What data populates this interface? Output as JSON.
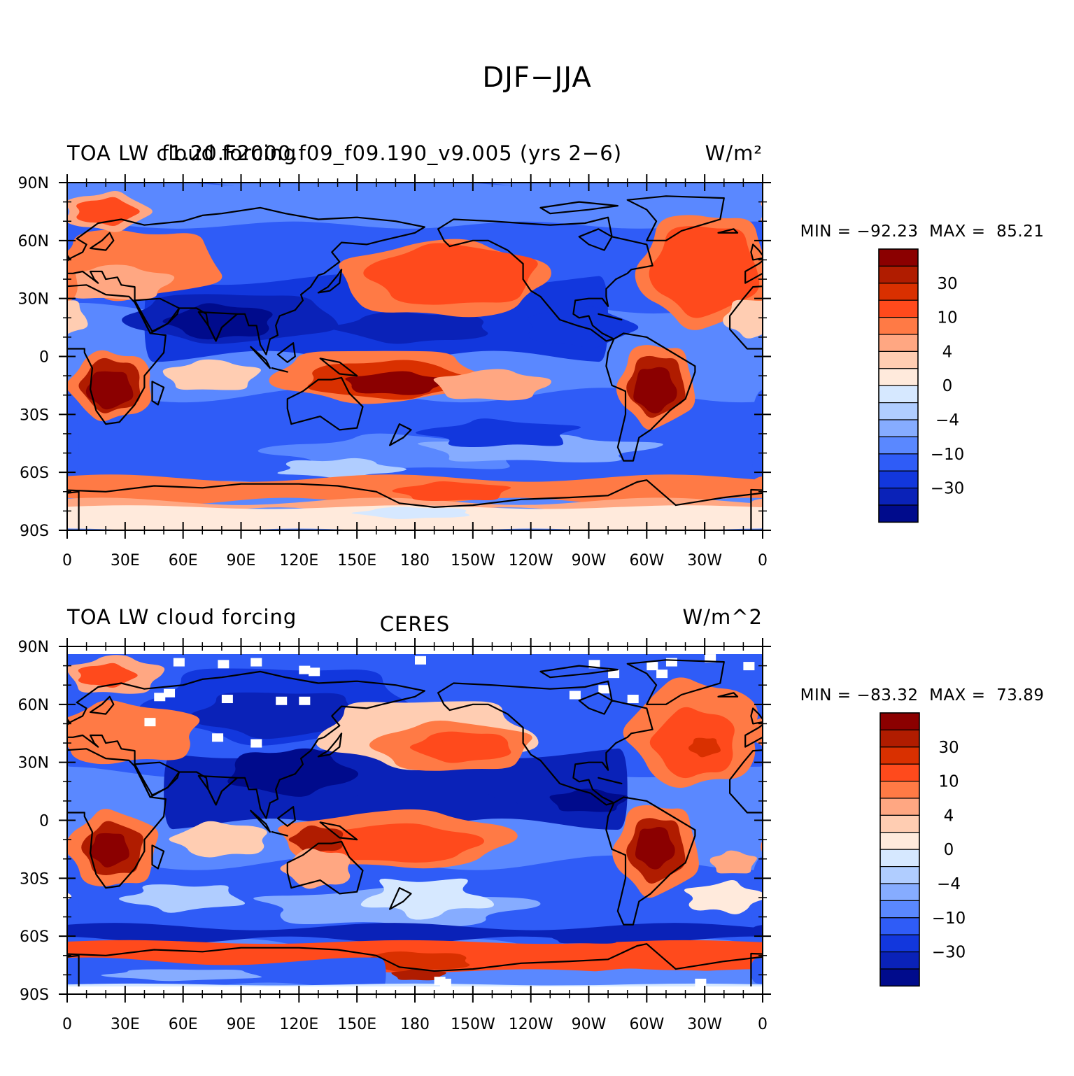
{
  "title": "DJF−JJA",
  "colors": {
    "levels": [
      "#8b0000",
      "#b01c00",
      "#d93000",
      "#ff4a1c",
      "#ff7a45",
      "#ffa782",
      "#ffcdb2",
      "#ffeadc",
      "#d6e8ff",
      "#b0cdff",
      "#86acff",
      "#5a88ff",
      "#2f5cf7",
      "#1237dd",
      "#0a22b8",
      "#000b8c"
    ]
  },
  "colorbar_labels": [
    "30",
    "10",
    "4",
    "0",
    "−4",
    "−10",
    "−30"
  ],
  "lat_labels": [
    "90N",
    "60N",
    "30N",
    "0",
    "30S",
    "60S",
    "90S"
  ],
  "lon_labels": [
    "0",
    "30E",
    "60E",
    "90E",
    "120E",
    "150E",
    "180",
    "150W",
    "120W",
    "90W",
    "60W",
    "30W",
    "0"
  ],
  "panels": [
    {
      "left_title": "TOA LW cloud forcing",
      "center_title": "f1.20.F2000.f09_f09.190_v9.005 (yrs 2−6)",
      "right_title": "W/m²",
      "min_label": "MIN = −92.23",
      "max_label": "MAX =  85.21"
    },
    {
      "left_title": "TOA LW cloud forcing",
      "center_title": "CERES",
      "right_title": "W/m^2",
      "min_label": "MIN = −83.32",
      "max_label": "MAX =  73.89"
    }
  ]
}
